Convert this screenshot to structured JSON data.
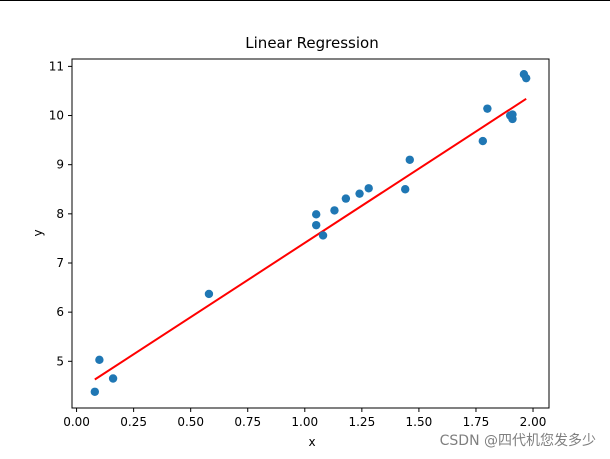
{
  "chart_data": {
    "type": "scatter",
    "title": "Linear Regression",
    "xlabel": "x",
    "ylabel": "y",
    "xlim": [
      -0.02,
      2.07
    ],
    "ylim": [
      4.05,
      11.15
    ],
    "xticks": [
      0.0,
      0.25,
      0.5,
      0.75,
      1.0,
      1.25,
      1.5,
      1.75,
      2.0
    ],
    "xtick_labels": [
      "0.00",
      "0.25",
      "0.50",
      "0.75",
      "1.00",
      "1.25",
      "1.50",
      "1.75",
      "2.00"
    ],
    "yticks": [
      5,
      6,
      7,
      8,
      9,
      10,
      11
    ],
    "ytick_labels": [
      "5",
      "6",
      "7",
      "8",
      "9",
      "10",
      "11"
    ],
    "grid": false,
    "series": [
      {
        "kind": "scatter",
        "color": "#1f77b4",
        "points": [
          {
            "x": 0.08,
            "y": 4.38
          },
          {
            "x": 0.1,
            "y": 5.03
          },
          {
            "x": 0.16,
            "y": 4.65
          },
          {
            "x": 0.58,
            "y": 6.37
          },
          {
            "x": 1.05,
            "y": 7.99
          },
          {
            "x": 1.05,
            "y": 7.77
          },
          {
            "x": 1.08,
            "y": 7.56
          },
          {
            "x": 1.13,
            "y": 8.07
          },
          {
            "x": 1.18,
            "y": 8.31
          },
          {
            "x": 1.24,
            "y": 8.41
          },
          {
            "x": 1.28,
            "y": 8.52
          },
          {
            "x": 1.44,
            "y": 8.5
          },
          {
            "x": 1.46,
            "y": 9.1
          },
          {
            "x": 1.78,
            "y": 9.48
          },
          {
            "x": 1.8,
            "y": 10.14
          },
          {
            "x": 1.9,
            "y": 10.0
          },
          {
            "x": 1.91,
            "y": 9.93
          },
          {
            "x": 1.91,
            "y": 10.02
          },
          {
            "x": 1.96,
            "y": 10.84
          },
          {
            "x": 1.97,
            "y": 10.76
          }
        ]
      },
      {
        "kind": "line",
        "color": "#ff0000",
        "points": [
          {
            "x": 0.08,
            "y": 4.63
          },
          {
            "x": 1.97,
            "y": 10.34
          }
        ]
      }
    ]
  },
  "watermark": "CSDN @四代机您发多少"
}
